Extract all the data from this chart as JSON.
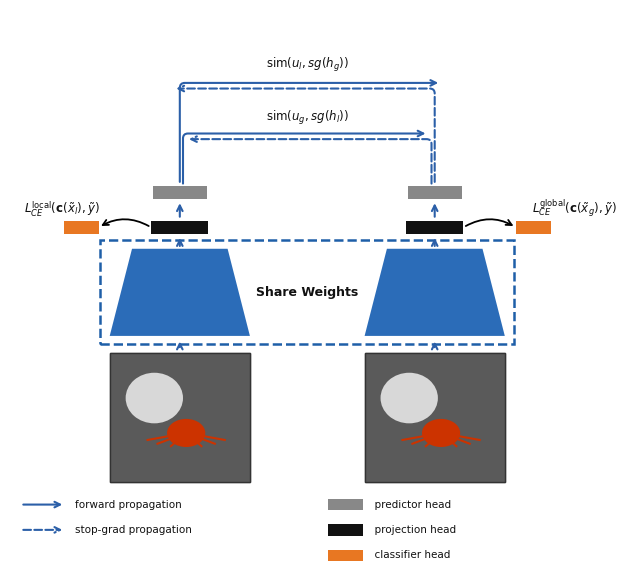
{
  "bg_color": "#ffffff",
  "fig_width": 6.4,
  "fig_height": 5.65,
  "dpi": 100,
  "blue_color": "#2B6CB8",
  "dashed_box_color": "#1E5FA8",
  "gray_color": "#888888",
  "black_color": "#111111",
  "orange_color": "#E87722",
  "arrow_color": "#2B5FA8",
  "text_color": "#111111",
  "legend_items": [
    {
      "label": "forward propagation",
      "style": "solid",
      "color": "#2B6CB8"
    },
    {
      "label": "stop-grad propagation",
      "style": "dashed",
      "color": "#2B6CB8"
    },
    {
      "label": "predictor head",
      "color": "#888888"
    },
    {
      "label": "projection head",
      "color": "#111111"
    },
    {
      "label": "classifier head",
      "color": "#E87722"
    }
  ],
  "sim_top_text": "sim(u_l, sg(h_g))",
  "sim_mid_text": "sim(u_g, sg(h_l))",
  "share_weights_text": "Share Weights",
  "left_label": "L^{local}_{CE}(c(\\tilde{x}_l), \\tilde{y})",
  "right_label": "L^{global}_{CE}(c(\\tilde{x}_g), \\tilde{y})"
}
